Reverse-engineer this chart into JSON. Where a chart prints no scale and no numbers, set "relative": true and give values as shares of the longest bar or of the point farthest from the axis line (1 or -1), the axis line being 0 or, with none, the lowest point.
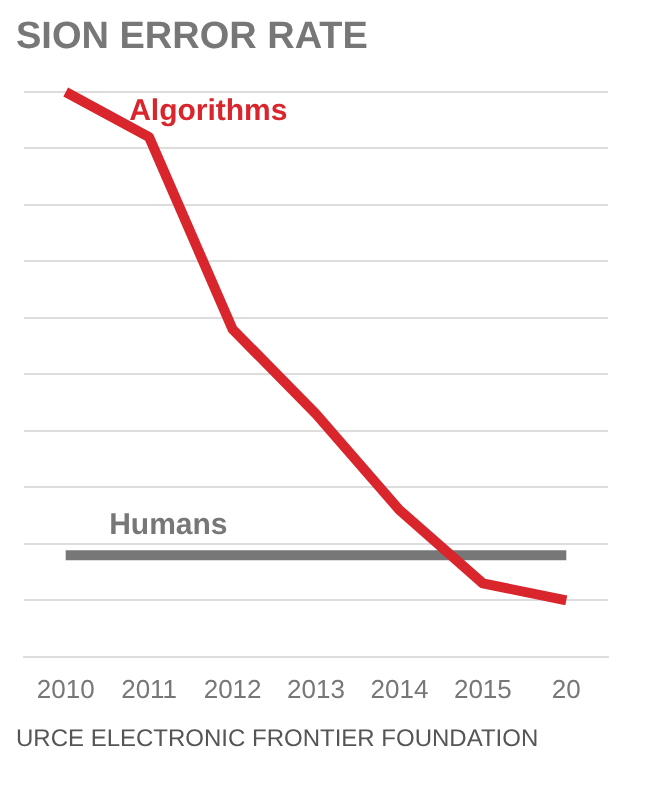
{
  "chart_data": {
    "type": "line",
    "title": "SION ERROR RATE",
    "categories": [
      "2010",
      "2011",
      "2012",
      "2013",
      "2014",
      "2015",
      "20"
    ],
    "relative": true,
    "grid": "y",
    "legend": false,
    "marker": "none",
    "line_style": "solid",
    "series": [
      {
        "name": "Algorithms",
        "color": "#d9262c",
        "values": [
          1,
          0.92,
          0.58,
          0.43,
          0.26,
          0.13,
          0.1
        ]
      },
      {
        "name": "Humans",
        "color": "#777777",
        "values": [
          0.18,
          0.18,
          0.18,
          0.18,
          0.18,
          0.18,
          0.18
        ]
      }
    ],
    "annotations": [
      "URCE  ELECTRONIC FRONTIER FOUNDATION"
    ]
  }
}
